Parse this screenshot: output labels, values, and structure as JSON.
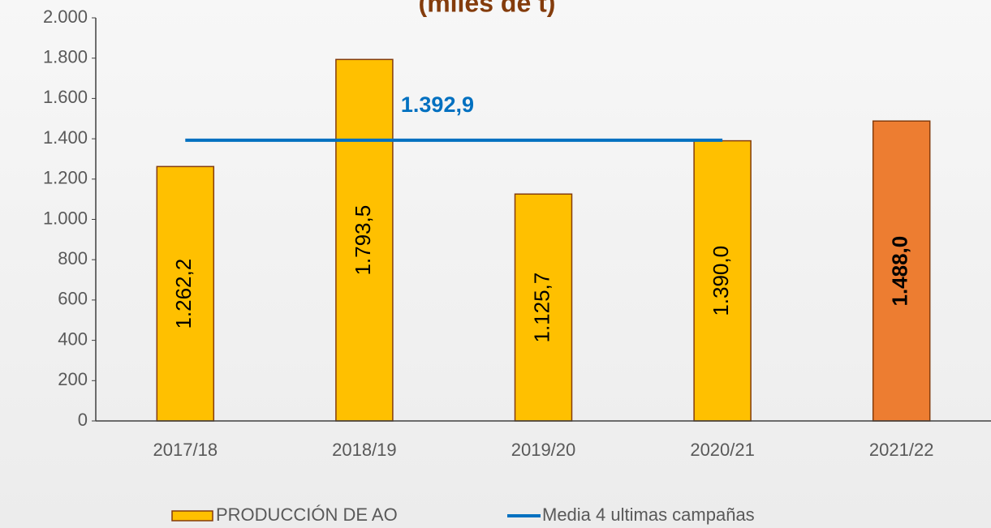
{
  "chart_data": {
    "type": "bar",
    "title": "(miles de t)",
    "categories": [
      "2017/18",
      "2018/19",
      "2019/20",
      "2020/21",
      "2021/22"
    ],
    "series": [
      {
        "name": "PRODUCCIÓN DE AO",
        "type": "bar",
        "color": "#FFC000",
        "colors": [
          "#FFC000",
          "#FFC000",
          "#FFC000",
          "#FFC000",
          "#ED7D31"
        ],
        "values": [
          1262.2,
          1793.5,
          1125.7,
          1390.0,
          1488.0
        ],
        "value_labels": [
          "1.262,2",
          "1.793,5",
          "1.125,7",
          "1.390,0",
          "1.488,0"
        ]
      },
      {
        "name": "Media 4 ultimas campañas",
        "type": "line",
        "color": "#0070C0",
        "values": [
          1392.9,
          1392.9,
          1392.9,
          1392.9,
          null
        ],
        "value_labels": [
          null,
          "1.392,9",
          null,
          null,
          null
        ]
      }
    ],
    "ylim": [
      0,
      2000
    ],
    "yticks": [
      0,
      {
        "value": 200,
        "label": "200"
      },
      {
        "value": 400,
        "label": "400"
      },
      {
        "value": 600,
        "label": "600"
      },
      {
        "value": 800,
        "label": "800"
      },
      {
        "value": 1000,
        "label": "1.000"
      },
      {
        "value": 1200,
        "label": "1.200"
      },
      {
        "value": 1400,
        "label": "1.400"
      },
      {
        "value": 1600,
        "label": "1.600"
      },
      {
        "value": 1800,
        "label": "1.800"
      },
      {
        "value": 2000,
        "label": "2.000"
      }
    ],
    "legend": "bottom"
  }
}
